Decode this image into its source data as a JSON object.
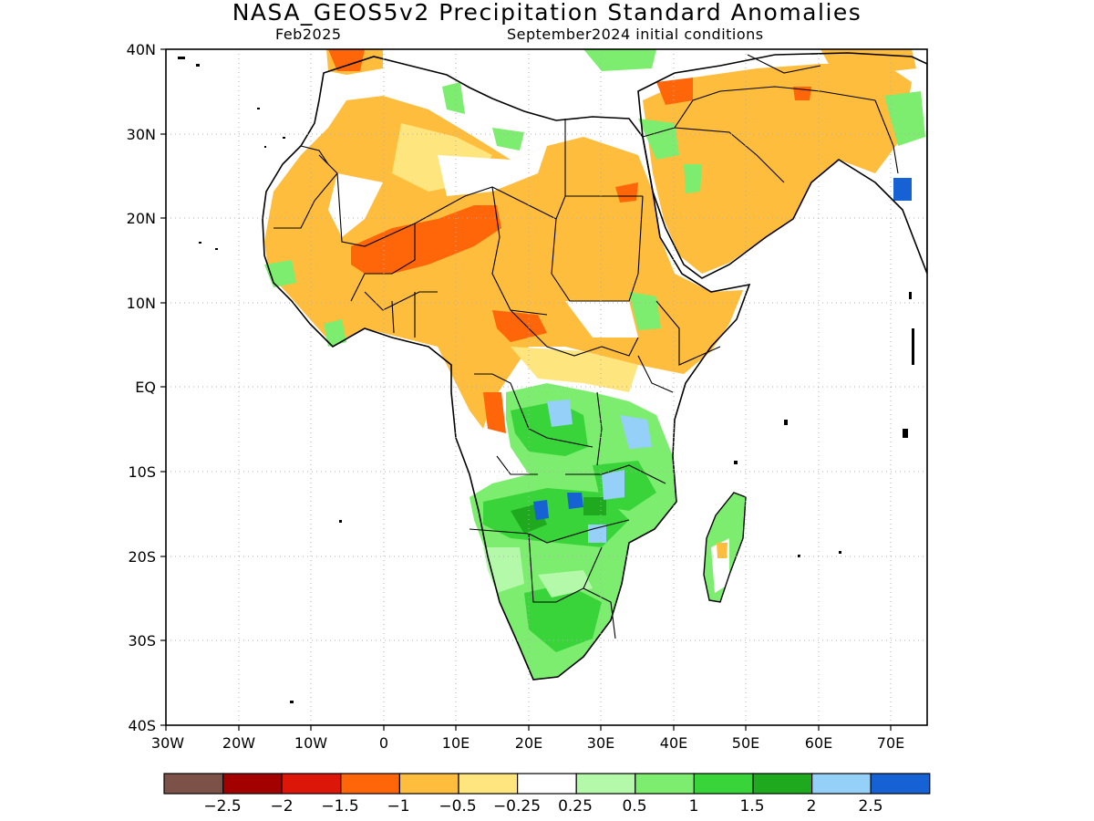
{
  "title": "NASA_GEOS5v2 Precipitation Standard Anomalies",
  "subtitle_left": "Feb2025",
  "subtitle_right": "September2024 initial conditions",
  "map": {
    "lat_labels": [
      "40N",
      "30N",
      "20N",
      "10N",
      "EQ",
      "10S",
      "20S",
      "30S",
      "40S"
    ],
    "lon_labels": [
      "30W",
      "20W",
      "10W",
      "0",
      "10E",
      "20E",
      "30E",
      "40E",
      "50E",
      "60E",
      "70E"
    ],
    "grid": "dotted"
  },
  "legend": {
    "colors": [
      "#7b5148",
      "#a30000",
      "#dc1709",
      "#ff6609",
      "#ffbd3d",
      "#ffe57d",
      "#ffffff",
      "#b4f8a9",
      "#7ced6e",
      "#38d43a",
      "#1fa91f",
      "#94d0f8",
      "#1662d4"
    ],
    "labels": [
      "−2.5",
      "−2",
      "−1.5",
      "−1",
      "−0.5",
      "−0.25",
      "0.25",
      "0.5",
      "1",
      "1.5",
      "2",
      "2.5"
    ]
  }
}
